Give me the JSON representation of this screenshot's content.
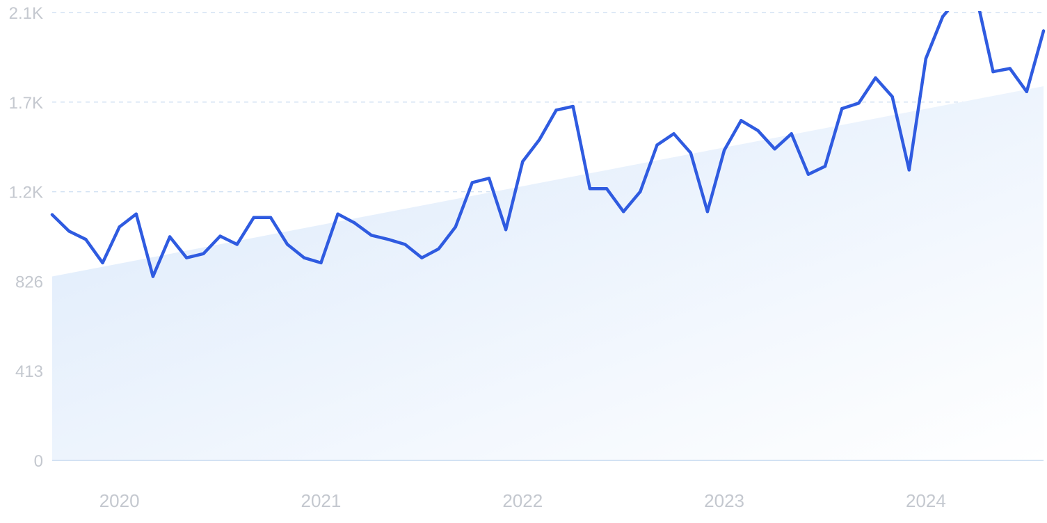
{
  "colors": {
    "line": "#2f5be0",
    "area_start": "#dbe9fb",
    "area_end": "#ffffff",
    "grid": "#d3e2f3",
    "tick_text": "#c4c8cf"
  },
  "chart_data": {
    "type": "line",
    "title": "",
    "xlabel": "",
    "ylabel": "",
    "grid": true,
    "y_ticks": [
      {
        "value": 0,
        "label": "0"
      },
      {
        "value": 413,
        "label": "413"
      },
      {
        "value": 826,
        "label": "826"
      },
      {
        "value": 1239,
        "label": "1.2K"
      },
      {
        "value": 1652,
        "label": "1.7K"
      },
      {
        "value": 2065,
        "label": "2.1K"
      }
    ],
    "ylim": [
      0,
      2065
    ],
    "x_ticks": [
      {
        "value": "2020-01",
        "label": "2020"
      },
      {
        "value": "2021-01",
        "label": "2021"
      },
      {
        "value": "2022-01",
        "label": "2022"
      },
      {
        "value": "2023-01",
        "label": "2023"
      },
      {
        "value": "2024-01",
        "label": "2024"
      }
    ],
    "xlim": [
      "2019-09",
      "2024-08"
    ],
    "series": [
      {
        "x": [
          "2019-09",
          "2019-10",
          "2019-11",
          "2019-12",
          "2020-01",
          "2020-02",
          "2020-03",
          "2020-04",
          "2020-05",
          "2020-06",
          "2020-07",
          "2020-08",
          "2020-09",
          "2020-10",
          "2020-11",
          "2020-12",
          "2021-01",
          "2021-02",
          "2021-03",
          "2021-04",
          "2021-05",
          "2021-06",
          "2021-07",
          "2021-08",
          "2021-09",
          "2021-10",
          "2021-11",
          "2021-12",
          "2022-01",
          "2022-02",
          "2022-03",
          "2022-04",
          "2022-05",
          "2022-06",
          "2022-07",
          "2022-08",
          "2022-09",
          "2022-10",
          "2022-11",
          "2022-12",
          "2023-01",
          "2023-02",
          "2023-03",
          "2023-04",
          "2023-05",
          "2023-06",
          "2023-07",
          "2023-08",
          "2023-09",
          "2023-10",
          "2023-11",
          "2023-12",
          "2024-01",
          "2024-02",
          "2024-03",
          "2024-04",
          "2024-05",
          "2024-06",
          "2024-07",
          "2024-08"
        ],
        "values": [
          1133,
          1057,
          1019,
          911,
          1076,
          1136,
          848,
          1031,
          934,
          953,
          1034,
          996,
          1120,
          1120,
          996,
          934,
          911,
          1136,
          1095,
          1038,
          1019,
          996,
          934,
          975,
          1076,
          1281,
          1301,
          1064,
          1378,
          1479,
          1615,
          1632,
          1253,
          1253,
          1147,
          1239,
          1454,
          1506,
          1418,
          1147,
          1430,
          1567,
          1521,
          1436,
          1506,
          1319,
          1356,
          1622,
          1647,
          1764,
          1677,
          1339,
          1853,
          2046,
          2140,
          2140,
          1792,
          1807,
          1700,
          1980
        ]
      }
    ],
    "trend": {
      "start": 848,
      "end": 1725
    }
  }
}
